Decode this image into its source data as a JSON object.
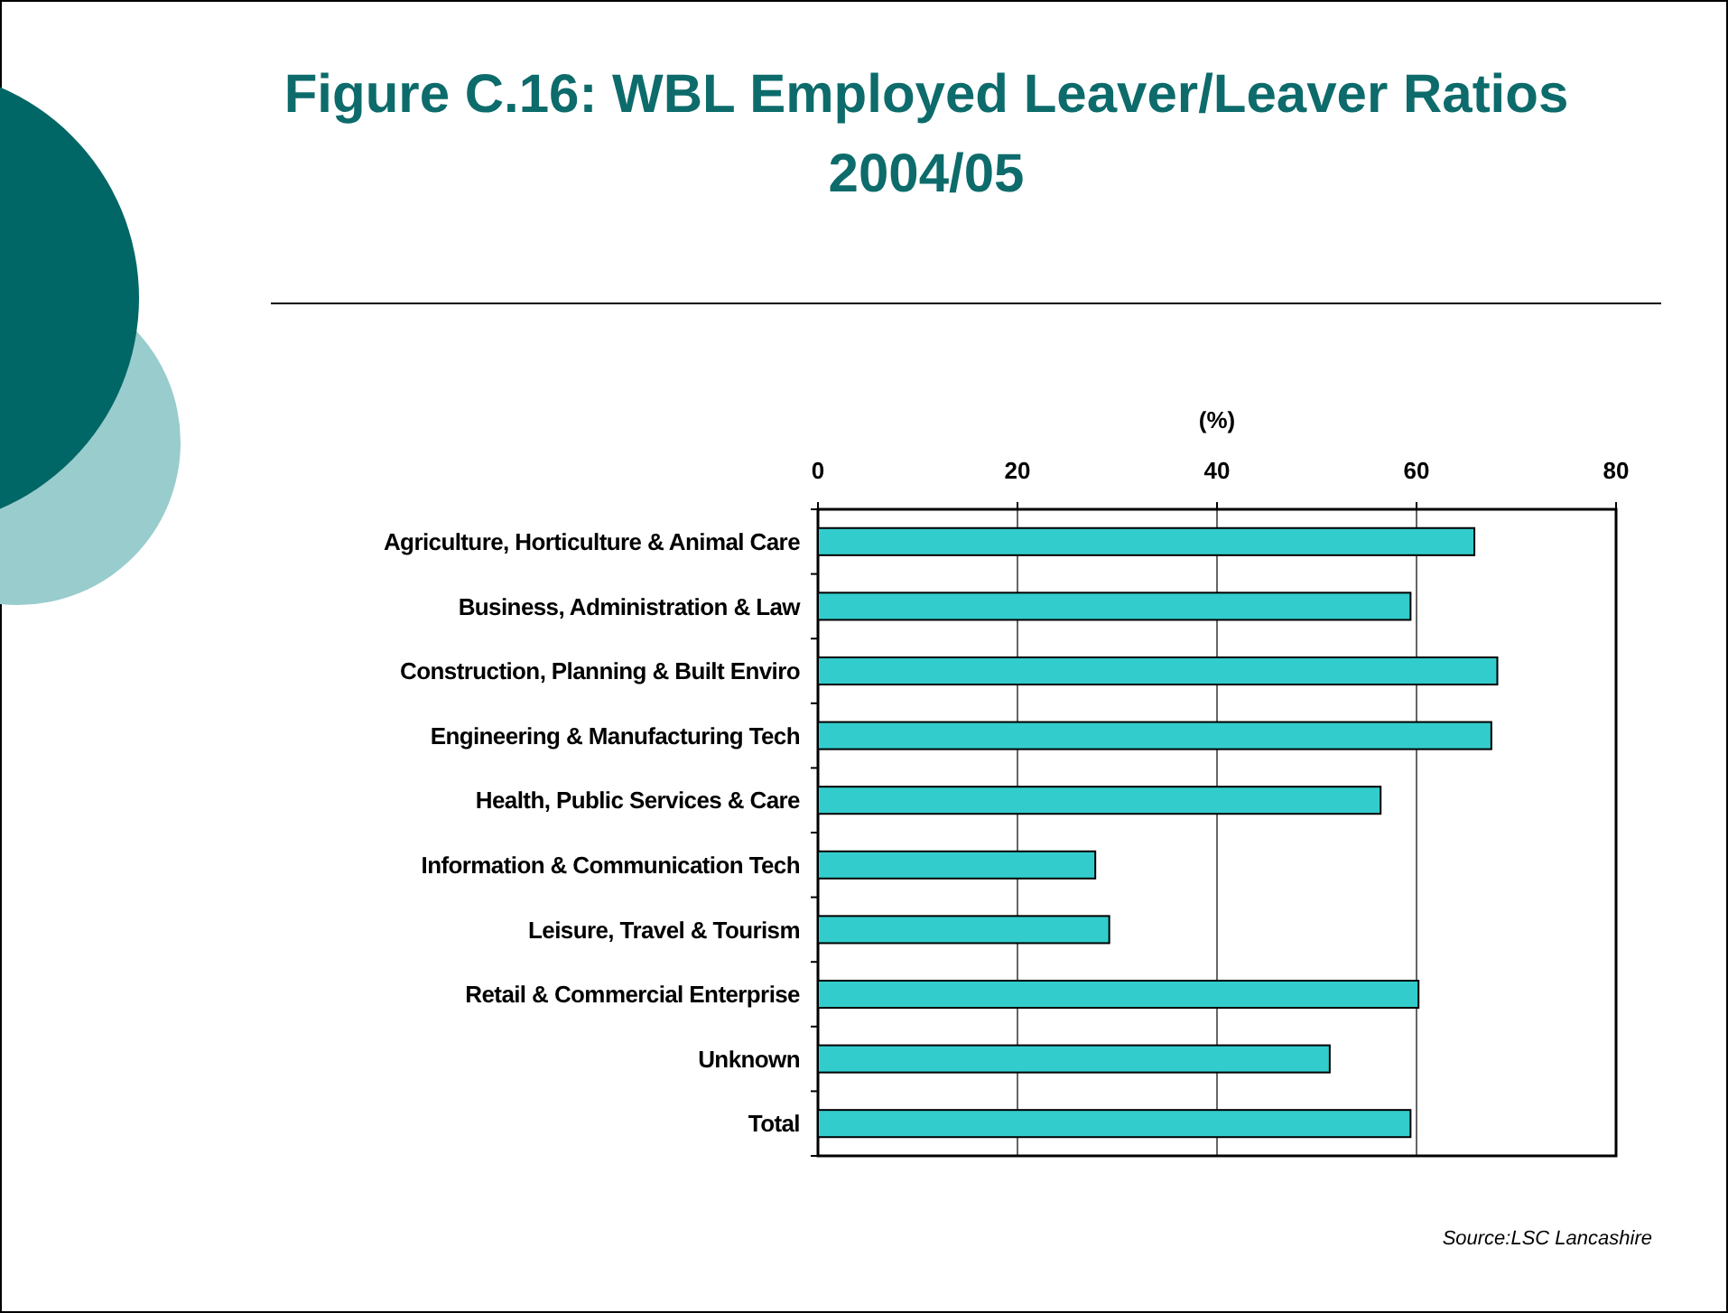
{
  "chart_data": {
    "type": "bar",
    "orientation": "horizontal",
    "title": "Figure C.16: WBL Employed Leaver/Leaver Ratios 2004/05",
    "xlabel": "(%)",
    "categories": [
      "Agriculture, Horticulture & Animal Care",
      "Business, Administration & Law",
      "Construction, Planning & Built Enviro",
      "Engineering & Manufacturing Tech",
      "Health, Public Services & Care",
      "Information & Communication Tech",
      "Leisure, Travel & Tourism",
      "Retail & Commercial Enterprise",
      "Unknown",
      "Total"
    ],
    "values": [
      65.8,
      59.4,
      68.1,
      67.5,
      56.4,
      27.8,
      29.2,
      60.2,
      51.3,
      59.4
    ],
    "color": "#33cccc",
    "xlim": [
      0,
      80
    ],
    "xticks": [
      0,
      20,
      40,
      60,
      80
    ],
    "grid": "x",
    "annotations": [
      "Source:LSC Lancashire"
    ]
  }
}
